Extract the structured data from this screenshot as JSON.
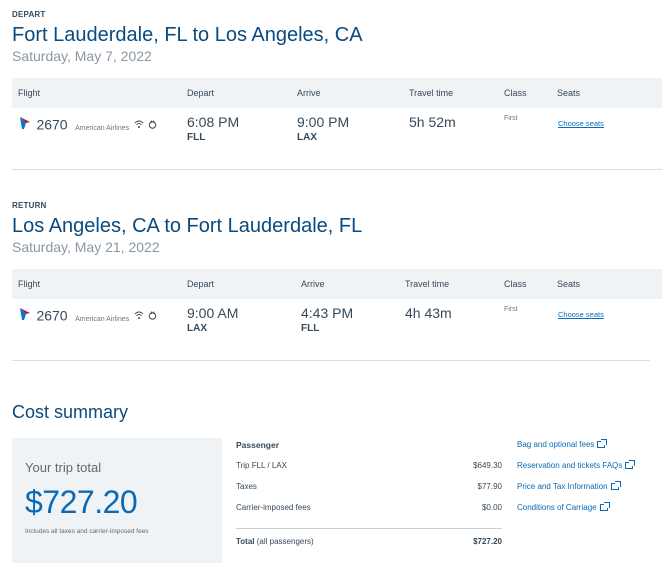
{
  "depart": {
    "section_label": "DEPART",
    "route": "Fort Lauderdale, FL to Los Angeles, CA",
    "date": "Saturday, May 7, 2022",
    "headers": {
      "flight": "Flight",
      "depart": "Depart",
      "arrive": "Arrive",
      "travel_time": "Travel time",
      "class": "Class",
      "seats": "Seats"
    },
    "flight": {
      "number": "2670",
      "airline": "American Airlines",
      "depart_time": "6:08 PM",
      "depart_code": "FLL",
      "arrive_time": "9:00 PM",
      "arrive_code": "LAX",
      "travel_time": "5h 52m",
      "class": "First",
      "seats_link": "Choose seats"
    }
  },
  "return": {
    "section_label": "RETURN",
    "route": "Los Angeles, CA to Fort Lauderdale, FL",
    "date": "Saturday, May 21, 2022",
    "headers": {
      "flight": "Flight",
      "depart": "Depart",
      "arrive": "Arrive",
      "travel_time": "Travel time",
      "class": "Class",
      "seats": "Seats"
    },
    "flight": {
      "number": "2670",
      "airline": "American Airlines",
      "depart_time": "9:00 AM",
      "depart_code": "LAX",
      "arrive_time": "4:43 PM",
      "arrive_code": "FLL",
      "travel_time": "4h 43m",
      "class": "First",
      "seats_link": "Choose seats"
    }
  },
  "cost": {
    "title": "Cost summary",
    "your_trip_total": "Your trip total",
    "amount": "$727.20",
    "note": "Includes all taxes and carrier-imposed fees",
    "passenger_header": "Passenger",
    "lines": [
      {
        "label": "Trip FLL / LAX",
        "value": "$649.30"
      },
      {
        "label": "Taxes",
        "value": "$77.90"
      },
      {
        "label": "Carrier-imposed fees",
        "value": "$0.00"
      }
    ],
    "total_label": "Total",
    "total_sub": "(all passengers)",
    "total_value": "$727.20"
  },
  "links": [
    "Bag and optional fees",
    "Reservation and tickets FAQs",
    "Price and Tax Information",
    "Conditions of Carriage"
  ],
  "colors": {
    "accent": "#0b6ab5",
    "heading": "#0b4a7e",
    "tail_red": "#c8102e",
    "tail_blue": "#0078d2"
  }
}
